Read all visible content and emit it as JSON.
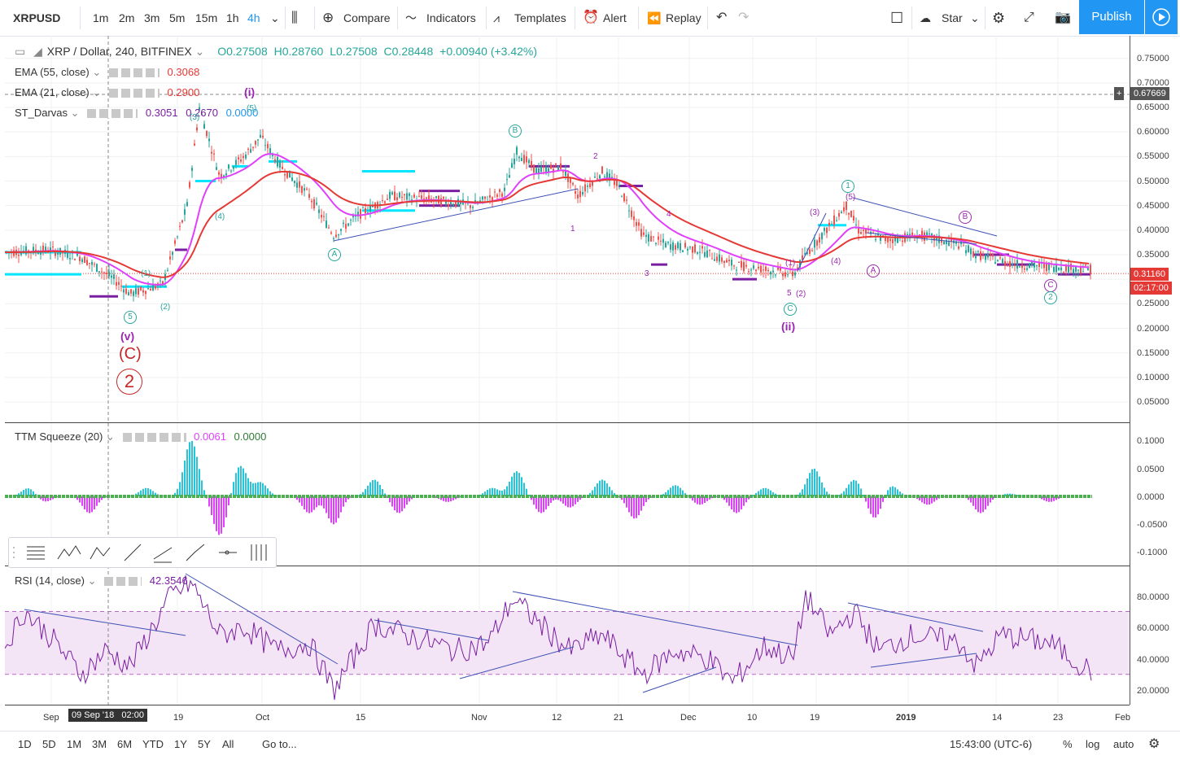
{
  "toolbar": {
    "symbol": "XRPUSD",
    "intervals": [
      "1m",
      "2m",
      "3m",
      "5m",
      "15m",
      "1h",
      "4h"
    ],
    "active_interval": "4h",
    "compare": "Compare",
    "indicators": "Indicators",
    "templates": "Templates",
    "alert": "Alert",
    "replay": "Replay",
    "star": "Star",
    "publish": "Publish"
  },
  "colors": {
    "accent": "#2196f3",
    "ema55": "#e53935",
    "ema21": "#e040fb",
    "up": "#26a69a",
    "down": "#ef5350",
    "rsi": "#7b1fa2",
    "cyan": "#00e5ff",
    "purple": "#7b1fa2",
    "trend": "#3f51b5"
  },
  "main": {
    "title": "XRP / Dollar, 240, BITFINEX",
    "ohlc": {
      "o": "O0.27508",
      "h": "H0.28760",
      "l": "L0.27508",
      "c": "C0.28448",
      "chg": "+0.00940 (+3.42%)"
    },
    "ema55": {
      "label": "EMA (55, close)",
      "value": "0.3068"
    },
    "ema21": {
      "label": "EMA (21, close)",
      "value": "0.2900"
    },
    "darvas": {
      "label": "ST_Darvas",
      "v1": "0.3051",
      "v2": "0.2670",
      "v3": "0.0000"
    },
    "price_levels": [
      "0.75000",
      "0.70000",
      "0.65000",
      "0.60000",
      "0.55000",
      "0.50000",
      "0.45000",
      "0.40000",
      "0.35000",
      "0.30000",
      "0.25000",
      "0.20000",
      "0.15000",
      "0.10000",
      "0.05000"
    ],
    "crosshair_price": "0.67669",
    "last_price": "0.31160",
    "countdown": "02:17:00"
  },
  "waves": {
    "v": "(v)",
    "C": "(C)",
    "two": "2",
    "i": "(i)",
    "ii": "(ii)",
    "A": "A",
    "B": "B",
    "C_small": "C",
    "five": "5",
    "one": "1",
    "paren1": "(1)",
    "paren2": "(2)",
    "paren3": "(3)",
    "paren4": "(4)",
    "paren5": "(5)",
    "n1": "1",
    "n2": "2",
    "n3": "3",
    "n4": "4"
  },
  "squeeze": {
    "label": "TTM Squeeze (20)",
    "v1": "0.0061",
    "v2": "0.0000",
    "levels": [
      "0.1000",
      "0.0500",
      "0.0000",
      "-0.0500",
      "-0.1000"
    ]
  },
  "rsi": {
    "label": "RSI (14, close)",
    "value": "42.3546",
    "levels": [
      "80.0000",
      "60.0000",
      "40.0000",
      "20.0000"
    ]
  },
  "time_axis": [
    "Sep",
    "19",
    "Oct",
    "15",
    "Nov",
    "12",
    "21",
    "Dec",
    "10",
    "19",
    "2019",
    "14",
    "23",
    "Feb"
  ],
  "crosshair_time": "09 Sep '18   02:00",
  "bottombar": {
    "ranges": [
      "1D",
      "5D",
      "1M",
      "3M",
      "6M",
      "YTD",
      "1Y",
      "5Y",
      "All"
    ],
    "goto": "Go to...",
    "time": "15:43:00 (UTC-6)",
    "pct": "%",
    "log": "log",
    "auto": "auto"
  }
}
